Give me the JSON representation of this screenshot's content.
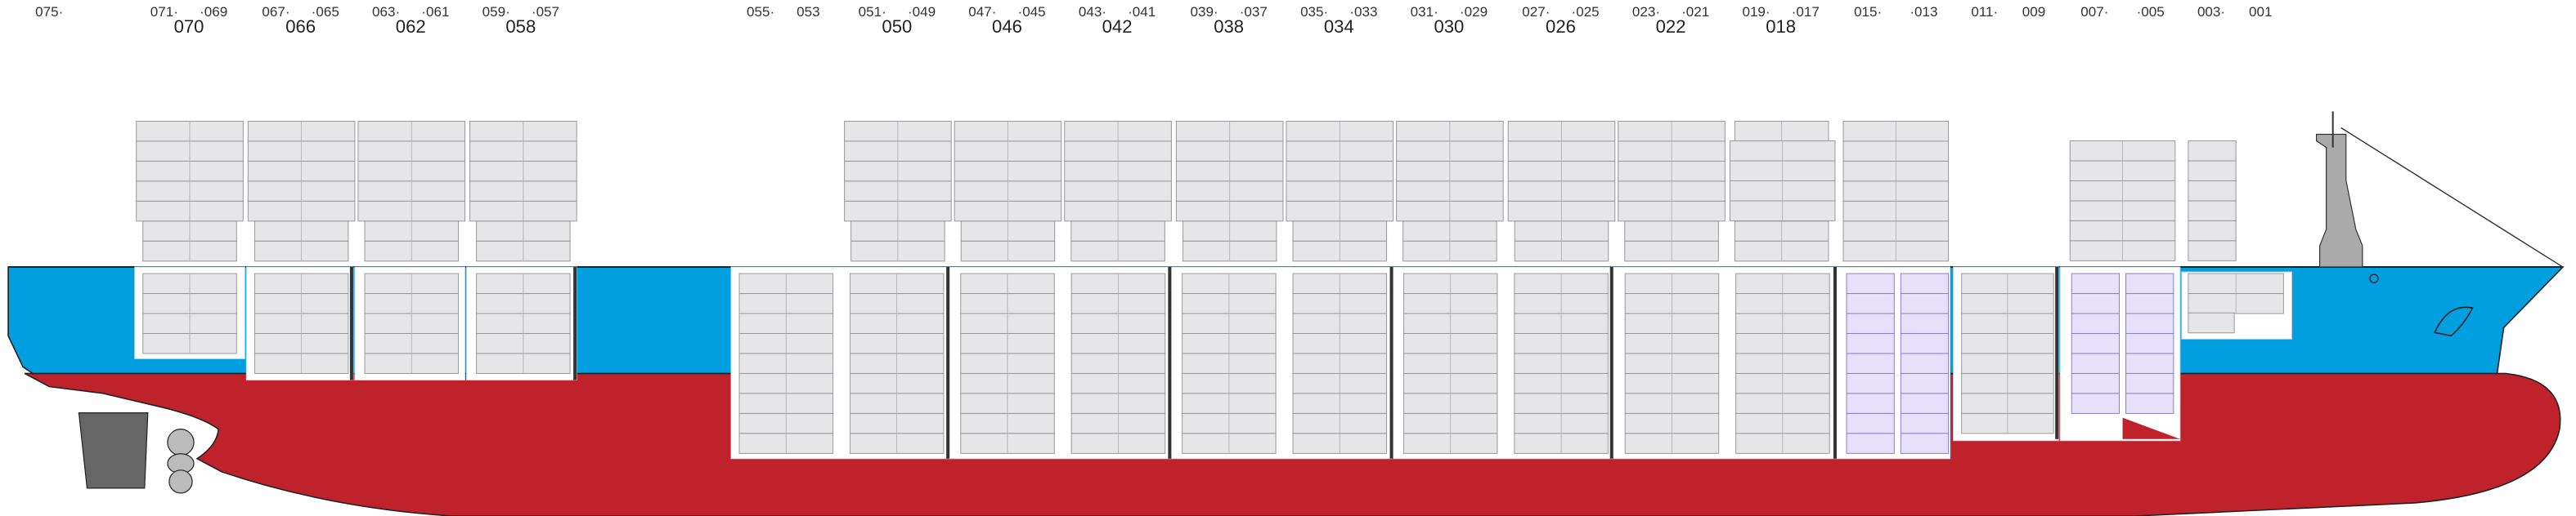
{
  "bay_labels": [
    "075·",
    "071·",
    "·069",
    "067·",
    "·065",
    "063·",
    "·061",
    "059·",
    "·057",
    "055·",
    "053",
    "051·",
    "·049",
    "047·",
    "·045",
    "043·",
    "·041",
    "039·",
    "·037",
    "035·",
    "·033",
    "031·",
    "·029",
    "027·",
    "·025",
    "023·",
    "·021",
    "019·",
    "·017",
    "015·",
    "·013",
    "011·",
    "009",
    "007·",
    "·005",
    "003·",
    "001"
  ],
  "bay_groups": [
    "070",
    "066",
    "062",
    "058",
    "050",
    "046",
    "042",
    "038",
    "034",
    "030",
    "026",
    "022",
    "018"
  ]
}
